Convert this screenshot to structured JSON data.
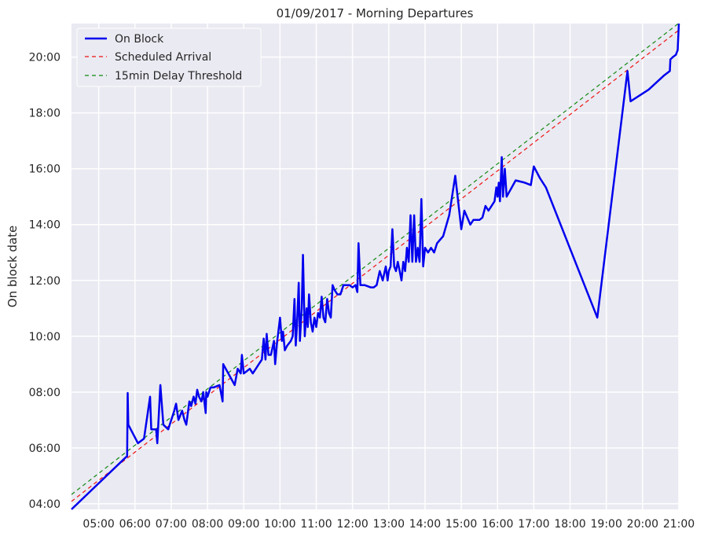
{
  "chart_data": {
    "type": "line",
    "title": "01/09/2017 - Morning Departures",
    "xlabel": "",
    "ylabel": "On block date",
    "x_axis": {
      "type": "time",
      "range": [
        "04:15",
        "21:00"
      ],
      "tick_labels": [
        "05:00",
        "06:00",
        "07:00",
        "08:00",
        "09:00",
        "10:00",
        "11:00",
        "12:00",
        "13:00",
        "14:00",
        "15:00",
        "16:00",
        "17:00",
        "18:00",
        "19:00",
        "20:00",
        "21:00"
      ]
    },
    "y_axis": {
      "type": "time",
      "range": [
        "03:48",
        "21:12"
      ],
      "tick_labels": [
        "04:00",
        "06:00",
        "08:00",
        "10:00",
        "12:00",
        "14:00",
        "16:00",
        "18:00",
        "20:00"
      ]
    },
    "grid": true,
    "legend": {
      "placement": "top-left",
      "entries": [
        "On Block",
        "Scheduled Arrival",
        "15min Delay Threshold"
      ]
    },
    "colors": {
      "on_block": "#0000ee",
      "scheduled": "#ee1111",
      "threshold": "#118811",
      "plot_bg": "#eaeaf2",
      "grid": "#ffffff"
    },
    "series": [
      {
        "name": "On Block",
        "style": "solid",
        "points": [
          [
            "04:15",
            "03:48"
          ],
          [
            "05:45",
            "05:40"
          ],
          [
            "05:47",
            "05:42"
          ],
          [
            "05:48",
            "07:58"
          ],
          [
            "05:49",
            "06:50"
          ],
          [
            "06:05",
            "06:10"
          ],
          [
            "06:15",
            "06:20"
          ],
          [
            "06:25",
            "07:50"
          ],
          [
            "06:27",
            "06:40"
          ],
          [
            "06:35",
            "06:40"
          ],
          [
            "06:37",
            "06:10"
          ],
          [
            "06:42",
            "08:15"
          ],
          [
            "06:47",
            "06:50"
          ],
          [
            "06:55",
            "06:40"
          ],
          [
            "07:05",
            "07:20"
          ],
          [
            "07:08",
            "07:35"
          ],
          [
            "07:12",
            "07:00"
          ],
          [
            "07:18",
            "07:20"
          ],
          [
            "07:22",
            "07:00"
          ],
          [
            "07:25",
            "06:50"
          ],
          [
            "07:30",
            "07:40"
          ],
          [
            "07:33",
            "07:30"
          ],
          [
            "07:37",
            "07:50"
          ],
          [
            "07:40",
            "07:35"
          ],
          [
            "07:43",
            "08:05"
          ],
          [
            "07:46",
            "07:50"
          ],
          [
            "07:50",
            "07:40"
          ],
          [
            "07:53",
            "08:00"
          ],
          [
            "07:57",
            "07:15"
          ],
          [
            "07:58",
            "08:00"
          ],
          [
            "08:00",
            "07:50"
          ],
          [
            "08:05",
            "08:10"
          ],
          [
            "08:10",
            "08:10"
          ],
          [
            "08:20",
            "08:15"
          ],
          [
            "08:25",
            "07:40"
          ],
          [
            "08:26",
            "09:00"
          ],
          [
            "08:45",
            "08:15"
          ],
          [
            "08:50",
            "08:50"
          ],
          [
            "08:55",
            "08:40"
          ],
          [
            "08:57",
            "09:20"
          ],
          [
            "09:00",
            "08:40"
          ],
          [
            "09:05",
            "08:45"
          ],
          [
            "09:10",
            "08:50"
          ],
          [
            "09:15",
            "08:40"
          ],
          [
            "09:20",
            "08:50"
          ],
          [
            "09:25",
            "09:00"
          ],
          [
            "09:30",
            "09:10"
          ],
          [
            "09:33",
            "09:55"
          ],
          [
            "09:36",
            "09:10"
          ],
          [
            "09:38",
            "10:05"
          ],
          [
            "09:41",
            "09:20"
          ],
          [
            "09:45",
            "09:20"
          ],
          [
            "09:50",
            "09:50"
          ],
          [
            "09:52",
            "09:00"
          ],
          [
            "09:55",
            "09:45"
          ],
          [
            "10:00",
            "10:40"
          ],
          [
            "10:03",
            "09:50"
          ],
          [
            "10:05",
            "10:10"
          ],
          [
            "10:08",
            "09:30"
          ],
          [
            "10:12",
            "09:40"
          ],
          [
            "10:18",
            "09:50"
          ],
          [
            "10:21",
            "10:00"
          ],
          [
            "10:24",
            "11:20"
          ],
          [
            "10:26",
            "09:40"
          ],
          [
            "10:28",
            "10:20"
          ],
          [
            "10:31",
            "11:55"
          ],
          [
            "10:33",
            "09:50"
          ],
          [
            "10:36",
            "11:00"
          ],
          [
            "10:38",
            "12:55"
          ],
          [
            "10:41",
            "10:00"
          ],
          [
            "10:44",
            "11:00"
          ],
          [
            "10:46",
            "10:20"
          ],
          [
            "10:48",
            "11:30"
          ],
          [
            "10:51",
            "10:30"
          ],
          [
            "10:54",
            "10:10"
          ],
          [
            "10:57",
            "10:40"
          ],
          [
            "11:00",
            "10:20"
          ],
          [
            "11:03",
            "10:50"
          ],
          [
            "11:06",
            "10:40"
          ],
          [
            "11:09",
            "11:25"
          ],
          [
            "11:12",
            "10:40"
          ],
          [
            "11:15",
            "10:30"
          ],
          [
            "11:18",
            "11:20"
          ],
          [
            "11:21",
            "10:50"
          ],
          [
            "11:24",
            "10:40"
          ],
          [
            "11:27",
            "11:50"
          ],
          [
            "11:30",
            "11:40"
          ],
          [
            "11:35",
            "11:30"
          ],
          [
            "11:40",
            "11:30"
          ],
          [
            "11:45",
            "11:50"
          ],
          [
            "11:50",
            "11:50"
          ],
          [
            "11:55",
            "11:50"
          ],
          [
            "12:00",
            "11:45"
          ],
          [
            "12:05",
            "11:50"
          ],
          [
            "12:08",
            "11:35"
          ],
          [
            "12:10",
            "13:20"
          ],
          [
            "12:13",
            "11:50"
          ],
          [
            "12:20",
            "11:50"
          ],
          [
            "12:30",
            "11:45"
          ],
          [
            "12:35",
            "11:45"
          ],
          [
            "12:40",
            "11:50"
          ],
          [
            "12:45",
            "12:20"
          ],
          [
            "12:50",
            "12:00"
          ],
          [
            "12:55",
            "12:30"
          ],
          [
            "12:58",
            "12:00"
          ],
          [
            "13:00",
            "12:20"
          ],
          [
            "13:03",
            "12:30"
          ],
          [
            "13:06",
            "13:50"
          ],
          [
            "13:09",
            "12:30"
          ],
          [
            "13:12",
            "12:20"
          ],
          [
            "13:15",
            "12:40"
          ],
          [
            "13:18",
            "12:20"
          ],
          [
            "13:21",
            "12:00"
          ],
          [
            "13:24",
            "12:40"
          ],
          [
            "13:27",
            "12:20"
          ],
          [
            "13:30",
            "13:10"
          ],
          [
            "13:33",
            "12:40"
          ],
          [
            "13:36",
            "14:20"
          ],
          [
            "13:39",
            "12:40"
          ],
          [
            "13:42",
            "14:20"
          ],
          [
            "13:45",
            "12:40"
          ],
          [
            "13:48",
            "13:10"
          ],
          [
            "13:51",
            "12:40"
          ],
          [
            "13:54",
            "14:55"
          ],
          [
            "13:57",
            "12:30"
          ],
          [
            "14:00",
            "13:10"
          ],
          [
            "14:05",
            "13:00"
          ],
          [
            "14:10",
            "13:10"
          ],
          [
            "14:15",
            "13:00"
          ],
          [
            "14:20",
            "13:20"
          ],
          [
            "14:30",
            "13:35"
          ],
          [
            "14:40",
            "14:20"
          ],
          [
            "14:50",
            "15:45"
          ],
          [
            "15:00",
            "13:50"
          ],
          [
            "15:05",
            "14:30"
          ],
          [
            "15:15",
            "14:00"
          ],
          [
            "15:20",
            "14:10"
          ],
          [
            "15:30",
            "14:10"
          ],
          [
            "15:35",
            "14:15"
          ],
          [
            "15:40",
            "14:40"
          ],
          [
            "15:45",
            "14:30"
          ],
          [
            "15:50",
            "14:40"
          ],
          [
            "15:55",
            "14:50"
          ],
          [
            "15:58",
            "15:20"
          ],
          [
            "16:00",
            "15:00"
          ],
          [
            "16:02",
            "15:30"
          ],
          [
            "16:04",
            "14:50"
          ],
          [
            "16:07",
            "16:25"
          ],
          [
            "16:09",
            "15:00"
          ],
          [
            "16:12",
            "16:00"
          ],
          [
            "16:15",
            "15:00"
          ],
          [
            "16:30",
            "15:35"
          ],
          [
            "16:45",
            "15:30"
          ],
          [
            "16:55",
            "15:25"
          ],
          [
            "17:00",
            "16:05"
          ],
          [
            "17:10",
            "15:40"
          ],
          [
            "17:20",
            "15:20"
          ],
          [
            "18:45",
            "10:40"
          ],
          [
            "19:35",
            "19:30"
          ],
          [
            "19:40",
            "18:25"
          ],
          [
            "20:10",
            "18:50"
          ],
          [
            "20:35",
            "19:20"
          ],
          [
            "20:45",
            "19:30"
          ],
          [
            "20:46",
            "19:55"
          ],
          [
            "20:50",
            "20:00"
          ],
          [
            "20:55",
            "20:05"
          ],
          [
            "20:58",
            "20:15"
          ],
          [
            "21:00",
            "21:12"
          ]
        ]
      },
      {
        "name": "Scheduled Arrival",
        "style": "dashed",
        "points": [
          [
            "04:15",
            "04:05"
          ],
          [
            "21:00",
            "20:58"
          ]
        ]
      },
      {
        "name": "15min Delay Threshold",
        "style": "dashed",
        "points": [
          [
            "04:15",
            "04:20"
          ],
          [
            "21:00",
            "21:13"
          ]
        ]
      }
    ]
  }
}
